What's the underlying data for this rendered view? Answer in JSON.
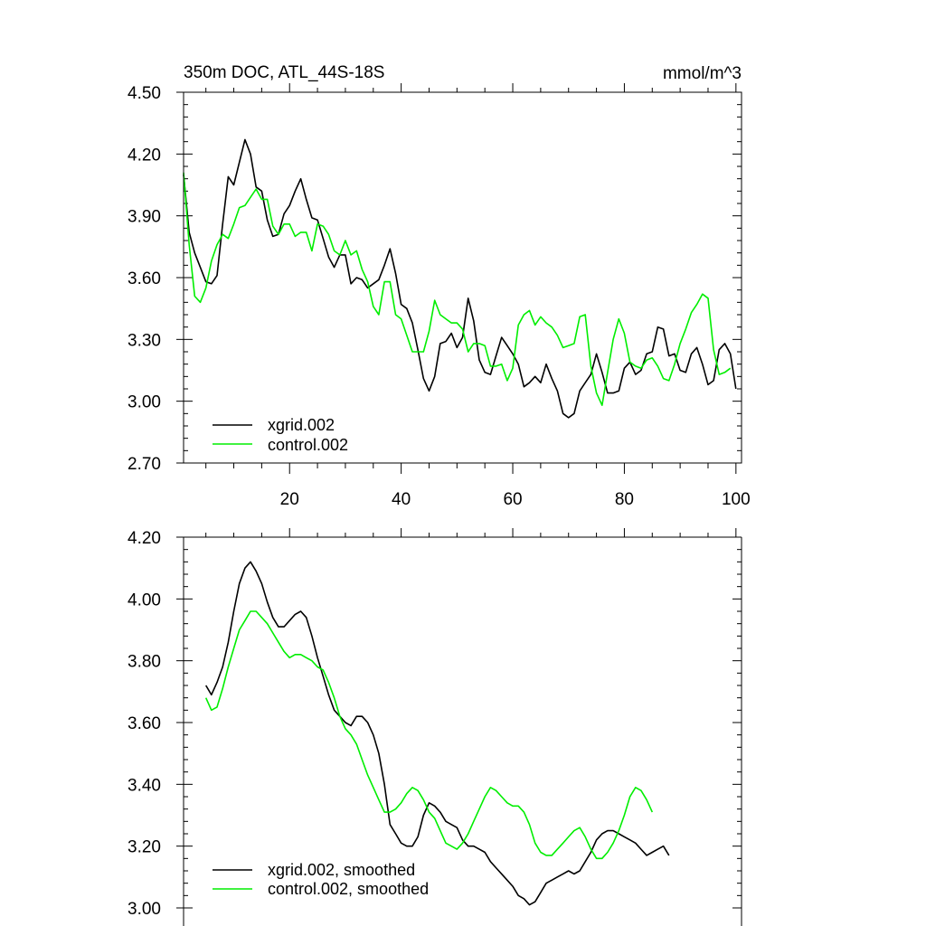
{
  "chart_data": [
    {
      "type": "line",
      "title": "350m DOC, ATL_44S-18S",
      "units": "mmol/m^3",
      "xlim": [
        1,
        101
      ],
      "ylim": [
        2.7,
        4.5
      ],
      "x_ticks": [
        20,
        40,
        60,
        80,
        100
      ],
      "x_tick_labels": [
        "20",
        "40",
        "60",
        "80",
        "100"
      ],
      "y_ticks": [
        2.7,
        3.0,
        3.3,
        3.6,
        3.9,
        4.2,
        4.5
      ],
      "y_tick_labels": [
        "2.70",
        "3.00",
        "3.30",
        "3.60",
        "3.90",
        "4.20",
        "4.50"
      ],
      "legend_position": "bottom-left",
      "series": [
        {
          "name": "xgrid.002",
          "color": "#000000",
          "x_start": 1,
          "values": [
            4.1,
            3.82,
            3.72,
            3.65,
            3.58,
            3.57,
            3.61,
            3.86,
            4.09,
            4.05,
            4.16,
            4.27,
            4.2,
            4.04,
            4.02,
            3.88,
            3.8,
            3.81,
            3.91,
            3.95,
            4.02,
            4.08,
            3.98,
            3.89,
            3.88,
            3.79,
            3.7,
            3.65,
            3.71,
            3.71,
            3.57,
            3.6,
            3.59,
            3.55,
            3.57,
            3.59,
            3.66,
            3.74,
            3.62,
            3.47,
            3.45,
            3.38,
            3.25,
            3.11,
            3.05,
            3.12,
            3.28,
            3.29,
            3.33,
            3.26,
            3.31,
            3.5,
            3.39,
            3.2,
            3.14,
            3.13,
            3.22,
            3.31,
            3.27,
            3.23,
            3.18,
            3.07,
            3.09,
            3.12,
            3.09,
            3.18,
            3.11,
            3.05,
            2.94,
            2.92,
            2.94,
            3.05,
            3.09,
            3.13,
            3.23,
            3.14,
            3.04,
            3.04,
            3.05,
            3.16,
            3.19,
            3.13,
            3.15,
            3.23,
            3.24,
            3.36,
            3.35,
            3.22,
            3.23,
            3.15,
            3.14,
            3.23,
            3.26,
            3.18,
            3.08,
            3.1,
            3.25,
            3.28,
            3.23,
            3.06
          ]
        },
        {
          "name": "control.002",
          "color": "#00ee00",
          "x_start": 1,
          "values": [
            4.11,
            3.76,
            3.51,
            3.48,
            3.55,
            3.68,
            3.76,
            3.81,
            3.79,
            3.86,
            3.94,
            3.95,
            3.99,
            4.03,
            3.98,
            3.98,
            3.85,
            3.81,
            3.86,
            3.86,
            3.8,
            3.82,
            3.82,
            3.73,
            3.86,
            3.85,
            3.81,
            3.73,
            3.71,
            3.78,
            3.71,
            3.73,
            3.64,
            3.58,
            3.46,
            3.42,
            3.58,
            3.58,
            3.42,
            3.4,
            3.32,
            3.24,
            3.24,
            3.24,
            3.34,
            3.49,
            3.42,
            3.4,
            3.38,
            3.38,
            3.35,
            3.24,
            3.28,
            3.28,
            3.27,
            3.17,
            3.17,
            3.18,
            3.1,
            3.16,
            3.37,
            3.42,
            3.44,
            3.37,
            3.41,
            3.38,
            3.36,
            3.32,
            3.26,
            3.27,
            3.28,
            3.41,
            3.42,
            3.17,
            3.04,
            2.98,
            3.14,
            3.3,
            3.4,
            3.33,
            3.19,
            3.17,
            3.16,
            3.2,
            3.21,
            3.17,
            3.11,
            3.1,
            3.18,
            3.28,
            3.35,
            3.43,
            3.47,
            3.52,
            3.5,
            3.25,
            3.13,
            3.14,
            3.16
          ]
        }
      ]
    },
    {
      "type": "line",
      "title": "",
      "xlim": [
        1,
        101
      ],
      "ylim": [
        3.0,
        4.2
      ],
      "x_ticks": [
        20,
        40,
        60,
        80,
        100
      ],
      "y_ticks": [
        3.0,
        3.2,
        3.4,
        3.6,
        3.8,
        4.0,
        4.2
      ],
      "y_tick_labels": [
        "3.00",
        "3.20",
        "3.40",
        "3.60",
        "3.80",
        "4.00",
        "4.20"
      ],
      "legend_position": "bottom-left",
      "series": [
        {
          "name": "xgrid.002, smoothed",
          "color": "#000000",
          "x_start": 5,
          "values": [
            3.72,
            3.69,
            3.73,
            3.78,
            3.86,
            3.96,
            4.05,
            4.1,
            4.12,
            4.09,
            4.05,
            3.99,
            3.94,
            3.91,
            3.91,
            3.93,
            3.95,
            3.96,
            3.94,
            3.88,
            3.81,
            3.75,
            3.69,
            3.64,
            3.62,
            3.6,
            3.59,
            3.62,
            3.62,
            3.6,
            3.56,
            3.5,
            3.4,
            3.27,
            3.24,
            3.21,
            3.2,
            3.2,
            3.23,
            3.3,
            3.34,
            3.33,
            3.31,
            3.28,
            3.27,
            3.26,
            3.22,
            3.2,
            3.2,
            3.19,
            3.18,
            3.15,
            3.13,
            3.11,
            3.09,
            3.07,
            3.04,
            3.03,
            3.01,
            3.02,
            3.05,
            3.08,
            3.09,
            3.1,
            3.11,
            3.12,
            3.11,
            3.12,
            3.15,
            3.18,
            3.22,
            3.24,
            3.25,
            3.25,
            3.24,
            3.23,
            3.22,
            3.21,
            3.19,
            3.17,
            3.18,
            3.19,
            3.2,
            3.17
          ]
        },
        {
          "name": "control.002, smoothed",
          "color": "#00ee00",
          "x_start": 5,
          "values": [
            3.68,
            3.64,
            3.65,
            3.71,
            3.78,
            3.84,
            3.9,
            3.93,
            3.96,
            3.96,
            3.94,
            3.92,
            3.89,
            3.86,
            3.83,
            3.81,
            3.82,
            3.82,
            3.81,
            3.8,
            3.78,
            3.77,
            3.73,
            3.68,
            3.62,
            3.58,
            3.56,
            3.53,
            3.48,
            3.43,
            3.39,
            3.35,
            3.31,
            3.31,
            3.32,
            3.34,
            3.37,
            3.39,
            3.38,
            3.35,
            3.31,
            3.29,
            3.25,
            3.21,
            3.2,
            3.19,
            3.21,
            3.24,
            3.28,
            3.32,
            3.36,
            3.39,
            3.38,
            3.36,
            3.34,
            3.33,
            3.33,
            3.31,
            3.27,
            3.21,
            3.18,
            3.17,
            3.17,
            3.19,
            3.21,
            3.23,
            3.25,
            3.26,
            3.23,
            3.19,
            3.16,
            3.16,
            3.18,
            3.21,
            3.25,
            3.3,
            3.36,
            3.39,
            3.38,
            3.35,
            3.31
          ]
        }
      ]
    }
  ]
}
